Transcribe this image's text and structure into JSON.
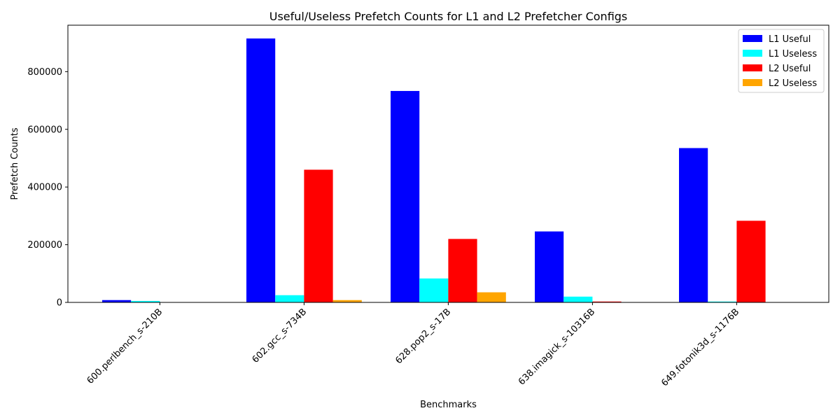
{
  "chart_data": {
    "type": "bar",
    "title": "Useful/Useless Prefetch Counts for L1 and L2 Prefetcher Configs",
    "xlabel": "Benchmarks",
    "ylabel": "Prefetch Counts",
    "categories": [
      "600.perlbench_s-210B",
      "602.gcc_s-734B",
      "628.pop2_s-17B",
      "638.imagick_s-10316B",
      "649.fotonik3d_s-1176B"
    ],
    "series": [
      {
        "name": "L1 Useful",
        "color": "#0000ff",
        "values": [
          8000,
          915000,
          733000,
          246000,
          535000
        ]
      },
      {
        "name": "L1 Useless",
        "color": "#00ffff",
        "values": [
          5000,
          25000,
          83000,
          20000,
          3000
        ]
      },
      {
        "name": "L2 Useful",
        "color": "#ff0000",
        "values": [
          0,
          460000,
          220000,
          3000,
          283000
        ]
      },
      {
        "name": "L2 Useless",
        "color": "#ffa500",
        "values": [
          0,
          8000,
          35000,
          0,
          0
        ]
      }
    ],
    "ylim": [
      0,
      961000
    ],
    "yticks": [
      0,
      200000,
      400000,
      600000,
      800000
    ],
    "ytick_labels": [
      "0",
      "200000",
      "400000",
      "600000",
      "800000"
    ],
    "grid": false,
    "legend_position": "top-right"
  }
}
